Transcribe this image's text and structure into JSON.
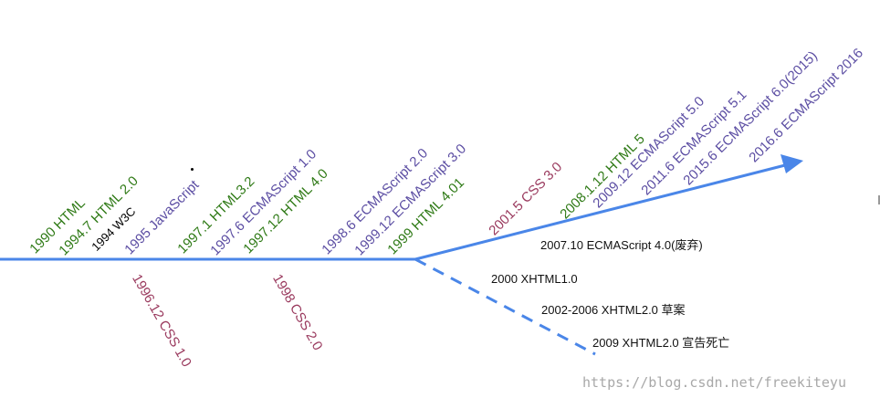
{
  "colors": {
    "html": "#2f7a16",
    "ecma": "#5c4ea3",
    "css": "#9a3a5e",
    "w3c": "#000000",
    "line": "#4a86e8",
    "watermark": "#a8a8a8"
  },
  "upper_labels": [
    {
      "text": "1990 HTML",
      "color_key": "html"
    },
    {
      "text": "1994.7 HTML 2.0",
      "color_key": "html"
    },
    {
      "text": "1994 W3C",
      "color_key": "w3c"
    },
    {
      "text": "1995 JavaScript",
      "color_key": "ecma"
    },
    {
      "text": "1997.1 HTML3.2",
      "color_key": "html"
    },
    {
      "text": "1997.6 ECMAScript 1.0",
      "color_key": "ecma"
    },
    {
      "text": "1997.12 HTML 4.0",
      "color_key": "html"
    },
    {
      "text": "1998.6 ECMAScript 2.0",
      "color_key": "ecma"
    },
    {
      "text": "1999.12 ECMAScript 3.0",
      "color_key": "ecma"
    },
    {
      "text": "1999 HTML 4.01",
      "color_key": "html"
    },
    {
      "text": "2001.5 CSS 3.0",
      "color_key": "css"
    },
    {
      "text": "2008.1.12 HTML 5",
      "color_key": "html"
    },
    {
      "text": "2009.12 ECMAScript 5.0",
      "color_key": "ecma"
    },
    {
      "text": "2011.6 ECMAScript 5.1",
      "color_key": "ecma"
    },
    {
      "text": "2015.6 ECMAScript 6.0(2015)",
      "color_key": "ecma"
    },
    {
      "text": "2016.6 ECMAScript 2016",
      "color_key": "ecma"
    }
  ],
  "lower_labels": [
    {
      "text": "1996.12 CSS 1.0",
      "color_key": "css"
    },
    {
      "text": "1998  CSS 2.0",
      "color_key": "css"
    }
  ],
  "branch_labels": [
    {
      "text": "2007.10 ECMAScript 4.0(废弃)"
    },
    {
      "text": "2000 XHTML1.0"
    },
    {
      "text": "2002-2006 XHTML2.0 草案"
    },
    {
      "text": "2009 XHTML2.0 宣告死亡"
    }
  ],
  "watermark": "https://blog.csdn.net/freekiteyu"
}
